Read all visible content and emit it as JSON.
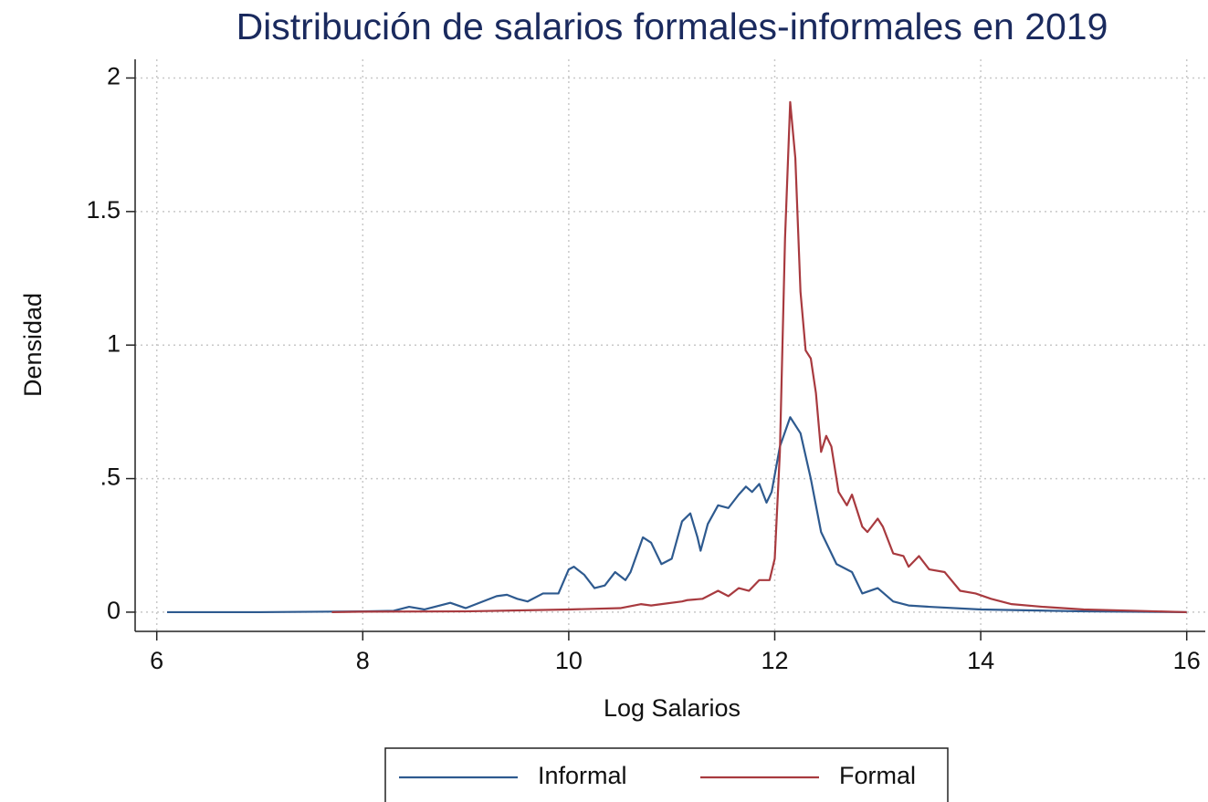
{
  "chart_data": {
    "type": "line",
    "title": "Distribución de salarios formales-informales en 2019",
    "xlabel": "Log Salarios",
    "ylabel": "Densidad",
    "xlim": [
      5.79,
      16.18
    ],
    "ylim": [
      -0.072,
      2.07
    ],
    "xticks": [
      6,
      8,
      10,
      12,
      14,
      16
    ],
    "yticks": [
      0,
      {
        "value": 0.5,
        "label": ".5"
      },
      1,
      1.5,
      2
    ],
    "grid": true,
    "legend": "bottom",
    "series": [
      {
        "name": "Informal",
        "color": "#2e5a8f",
        "x": [
          6.1,
          7,
          8,
          8.3,
          8.45,
          8.6,
          8.85,
          9.0,
          9.1,
          9.3,
          9.4,
          9.5,
          9.6,
          9.75,
          9.9,
          10.0,
          10.05,
          10.15,
          10.25,
          10.35,
          10.45,
          10.55,
          10.6,
          10.72,
          10.8,
          10.9,
          11.0,
          11.1,
          11.18,
          11.25,
          11.28,
          11.35,
          11.45,
          11.55,
          11.65,
          11.72,
          11.78,
          11.85,
          11.92,
          11.97,
          12.05,
          12.15,
          12.25,
          12.35,
          12.45,
          12.6,
          12.75,
          12.85,
          13.0,
          13.15,
          13.3,
          13.5,
          14,
          15,
          16
        ],
        "values": [
          0,
          0,
          0.003,
          0.005,
          0.02,
          0.01,
          0.035,
          0.015,
          0.03,
          0.06,
          0.065,
          0.05,
          0.04,
          0.07,
          0.07,
          0.16,
          0.17,
          0.14,
          0.09,
          0.1,
          0.15,
          0.12,
          0.15,
          0.28,
          0.26,
          0.18,
          0.2,
          0.34,
          0.37,
          0.28,
          0.23,
          0.33,
          0.4,
          0.39,
          0.44,
          0.47,
          0.45,
          0.48,
          0.41,
          0.45,
          0.62,
          0.73,
          0.67,
          0.5,
          0.3,
          0.18,
          0.15,
          0.07,
          0.09,
          0.04,
          0.025,
          0.02,
          0.01,
          0.003,
          0
        ]
      },
      {
        "name": "Formal",
        "color": "#a83a3f",
        "x": [
          7.7,
          8,
          9,
          10,
          10.5,
          10.7,
          10.8,
          10.9,
          11.1,
          11.15,
          11.3,
          11.45,
          11.55,
          11.65,
          11.75,
          11.85,
          11.95,
          12.0,
          12.05,
          12.1,
          12.15,
          12.2,
          12.25,
          12.3,
          12.35,
          12.4,
          12.45,
          12.5,
          12.55,
          12.62,
          12.7,
          12.75,
          12.85,
          12.9,
          13.0,
          13.05,
          13.15,
          13.25,
          13.3,
          13.4,
          13.5,
          13.65,
          13.8,
          13.95,
          14.1,
          14.3,
          14.6,
          15,
          15.5,
          16
        ],
        "values": [
          0,
          0.002,
          0.003,
          0.01,
          0.015,
          0.03,
          0.025,
          0.03,
          0.04,
          0.045,
          0.05,
          0.08,
          0.06,
          0.09,
          0.08,
          0.12,
          0.12,
          0.2,
          0.6,
          1.4,
          1.91,
          1.7,
          1.2,
          0.98,
          0.95,
          0.82,
          0.6,
          0.66,
          0.62,
          0.45,
          0.4,
          0.44,
          0.32,
          0.3,
          0.35,
          0.32,
          0.22,
          0.21,
          0.17,
          0.21,
          0.16,
          0.15,
          0.08,
          0.07,
          0.05,
          0.03,
          0.02,
          0.01,
          0.005,
          0
        ]
      }
    ]
  }
}
